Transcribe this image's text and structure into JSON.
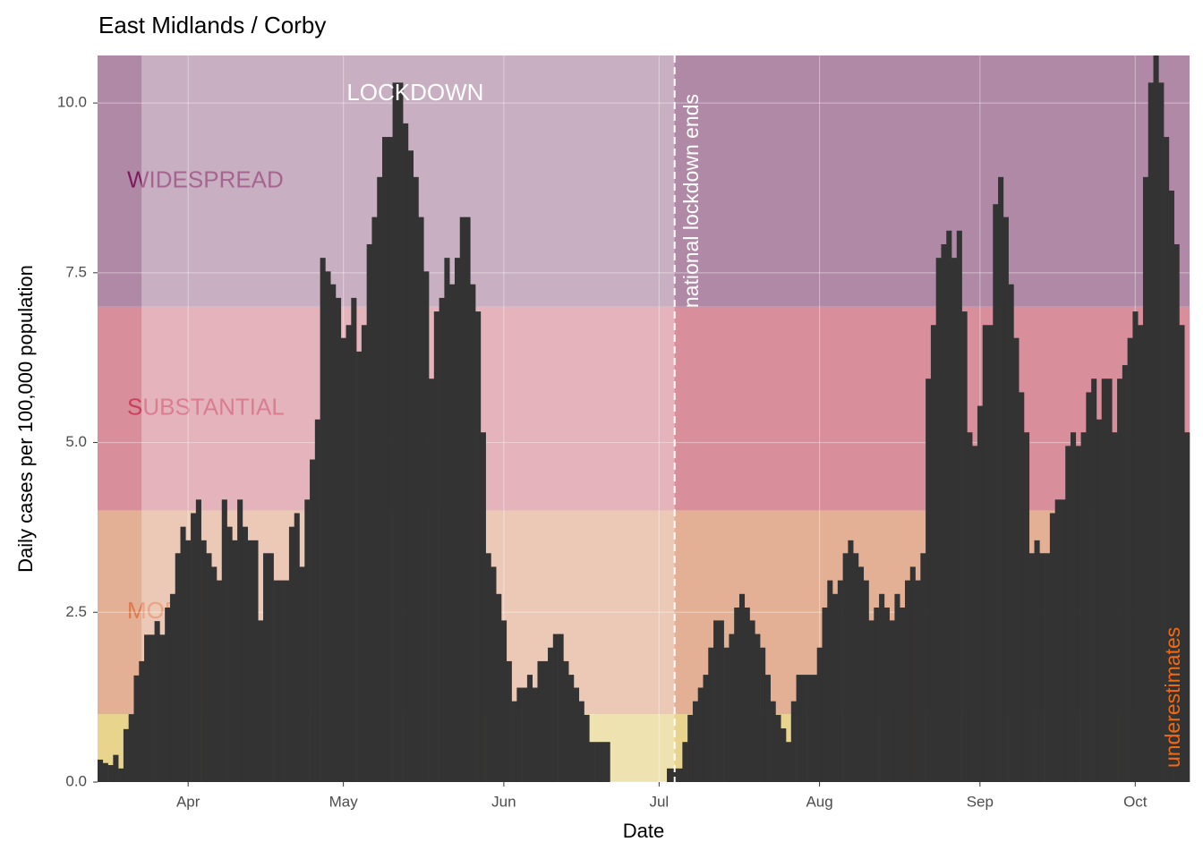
{
  "chart_data": {
    "type": "bar",
    "title": "East Midlands / Corby",
    "x_label": "Date",
    "y_label": "Daily cases per 100,000 population",
    "categories": [
      null,
      null,
      null,
      null,
      null,
      null,
      null,
      null,
      null,
      null,
      null,
      null,
      null,
      null,
      null,
      null,
      null,
      "Apr",
      null,
      null,
      null,
      null,
      null,
      null,
      null,
      null,
      null,
      null,
      null,
      null,
      null,
      null,
      null,
      null,
      null,
      null,
      null,
      null,
      null,
      null,
      null,
      null,
      null,
      null,
      null,
      null,
      null,
      "May",
      null,
      null,
      null,
      null,
      null,
      null,
      null,
      null,
      null,
      null,
      null,
      null,
      null,
      null,
      null,
      null,
      null,
      null,
      null,
      null,
      null,
      null,
      null,
      null,
      null,
      null,
      null,
      null,
      null,
      null,
      "Jun",
      null,
      null,
      null,
      null,
      null,
      null,
      null,
      null,
      null,
      null,
      null,
      null,
      null,
      null,
      null,
      null,
      null,
      null,
      null,
      null,
      null,
      null,
      null,
      null,
      null,
      null,
      null,
      null,
      null,
      "Jul",
      null,
      null,
      null,
      null,
      null,
      null,
      null,
      null,
      null,
      null,
      null,
      null,
      null,
      null,
      null,
      null,
      null,
      null,
      null,
      null,
      null,
      null,
      null,
      null,
      null,
      null,
      null,
      null,
      null,
      null,
      "Aug",
      null,
      null,
      null,
      null,
      null,
      null,
      null,
      null,
      null,
      null,
      null,
      null,
      null,
      null,
      null,
      null,
      null,
      null,
      null,
      null,
      null,
      null,
      null,
      null,
      null,
      null,
      null,
      null,
      null,
      null,
      "Sep",
      null,
      null,
      null,
      null,
      null,
      null,
      null,
      null,
      null,
      null,
      null,
      null,
      null,
      null,
      null,
      null,
      null,
      null,
      null,
      null,
      null,
      null,
      null,
      null,
      null,
      null,
      null,
      null,
      null,
      "Oct",
      null,
      null,
      null,
      null,
      null,
      null,
      null,
      null,
      null,
      null
    ],
    "values": [
      0.33,
      0.28,
      0.25,
      0.4,
      0.2,
      0.78,
      1.0,
      1.57,
      1.78,
      2.17,
      2.17,
      2.37,
      2.17,
      2.57,
      2.77,
      3.37,
      3.76,
      3.56,
      3.96,
      4.16,
      3.56,
      3.37,
      3.17,
      2.97,
      4.16,
      3.76,
      3.56,
      4.16,
      3.76,
      3.56,
      3.56,
      2.38,
      3.37,
      3.37,
      2.97,
      2.97,
      2.97,
      3.76,
      3.96,
      3.17,
      4.16,
      4.75,
      5.34,
      7.72,
      7.52,
      7.33,
      7.13,
      6.54,
      6.73,
      7.13,
      6.34,
      6.73,
      7.92,
      8.32,
      8.91,
      9.5,
      9.5,
      10.3,
      10.3,
      9.7,
      9.3,
      8.91,
      8.32,
      7.52,
      5.94,
      6.93,
      7.13,
      7.72,
      7.33,
      7.72,
      8.32,
      8.32,
      7.33,
      6.93,
      5.15,
      3.37,
      3.17,
      2.77,
      2.38,
      1.78,
      1.19,
      1.39,
      1.39,
      1.58,
      1.39,
      1.78,
      1.78,
      1.98,
      2.18,
      2.18,
      1.78,
      1.58,
      1.39,
      1.19,
      0.99,
      0.59,
      0.59,
      0.59,
      0.59,
      0,
      0,
      0,
      0,
      0,
      0,
      0,
      0,
      0,
      0,
      0,
      0.2,
      0.2,
      0.2,
      0.59,
      0.99,
      1.19,
      1.39,
      1.58,
      1.98,
      2.38,
      2.38,
      1.98,
      2.18,
      2.57,
      2.77,
      2.57,
      2.38,
      2.18,
      1.98,
      1.58,
      1.19,
      0.99,
      0.79,
      0.59,
      1.19,
      1.58,
      1.58,
      1.58,
      1.58,
      1.98,
      2.57,
      2.97,
      2.77,
      2.97,
      3.37,
      3.56,
      3.37,
      3.17,
      2.97,
      2.38,
      2.57,
      2.77,
      2.57,
      2.38,
      2.77,
      2.57,
      2.97,
      3.17,
      2.97,
      3.37,
      5.94,
      6.73,
      7.72,
      7.92,
      8.12,
      7.72,
      8.12,
      6.93,
      5.15,
      4.95,
      5.54,
      6.73,
      6.73,
      8.51,
      8.91,
      8.32,
      7.33,
      6.54,
      5.74,
      5.15,
      3.37,
      3.56,
      3.37,
      3.37,
      3.96,
      4.16,
      4.16,
      4.95,
      5.15,
      4.95,
      5.15,
      5.74,
      5.94,
      5.34,
      5.94,
      5.94,
      5.15,
      5.94,
      6.14,
      6.54,
      6.93,
      6.73,
      8.91,
      10.3,
      10.7,
      10.3,
      9.5,
      8.71,
      7.92,
      6.73,
      5.15
    ],
    "color": "#333333",
    "ylim": [
      0,
      10.7
    ],
    "yticks": [
      {
        "value": 0,
        "label": "0.0"
      },
      2.5,
      {
        "value": 5,
        "label": "5.0"
      },
      7.5,
      {
        "value": 10,
        "label": "10.0"
      }
    ],
    "grid": true,
    "bands": [
      {
        "from": 0,
        "color": "#e8d48c"
      },
      {
        "label": "MODERATE",
        "from": 1,
        "color": "#e3b095",
        "label_color": "#e0784a"
      },
      {
        "label": "SUBSTANTIAL",
        "from": 4,
        "color": "#d98f9b",
        "label_color": "#c8405e"
      },
      {
        "label": "WIDESPREAD",
        "from": 7,
        "color": "#b089a6",
        "label_color": "#7c1c5c"
      }
    ],
    "lockdown": {
      "label": "LOCKDOWN",
      "start_index": 8,
      "end_index": 111,
      "end_label": "national lockdown ends"
    },
    "note": "underestimates",
    "note_color": "#f26a10"
  }
}
